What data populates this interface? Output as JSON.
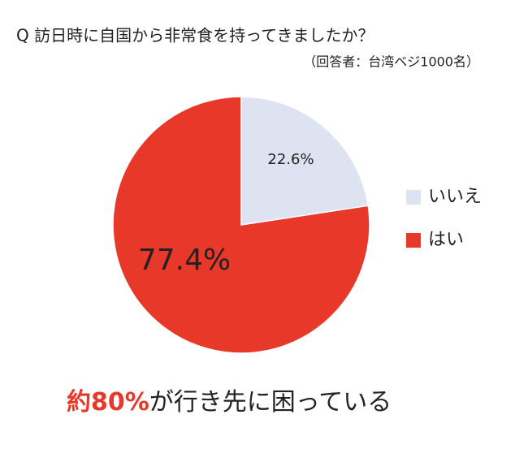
{
  "chart_data": {
    "type": "pie",
    "title": "Q 訪日時に自国から非常食を持ってきましたか？",
    "subtitle": "（回答者：台湾ベジ1000名）",
    "categories": [
      "いいえ",
      "はい"
    ],
    "values": [
      22.6,
      77.4
    ],
    "value_labels": [
      "22.6%",
      "77.4%"
    ],
    "colors": [
      "#dde3f1",
      "#e8382a"
    ],
    "legend": "right",
    "annotation": {
      "highlight": "約80%",
      "text": "が行き先に困っている"
    }
  }
}
